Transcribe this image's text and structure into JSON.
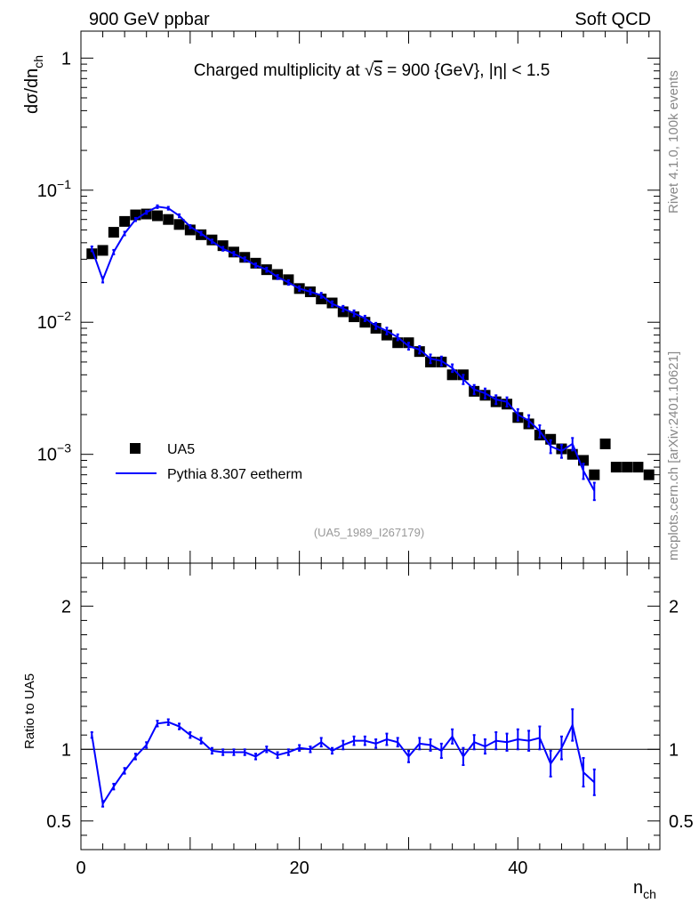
{
  "header": {
    "left": "900 GeV ppbar",
    "right": "Soft QCD"
  },
  "side_labels": {
    "top": "Rivet 4.1.0,  100k events",
    "bottom": "mcplots.cern.ch [arXiv:2401.10621]"
  },
  "chart_data": [
    {
      "type": "scatter",
      "title_prefix": "Charged multiplicity at ",
      "title_sqrt": "√",
      "title_s": "s",
      "title_suffix": " = 900 {GeV}, |η| < 1.5",
      "analysis_tag": "(UA5_1989_I267179)",
      "ylabel_main": "dσ/dn",
      "ylabel_sub": "ch",
      "yscale": "log",
      "ylim": [
        0.00015,
        1.6
      ],
      "xlim": [
        0,
        53
      ],
      "legend_position": "bottom-left",
      "y_ticks": [
        {
          "value": 1,
          "base": "1",
          "exp": ""
        },
        {
          "value": 0.1,
          "base": "10",
          "exp": "−1"
        },
        {
          "value": 0.01,
          "base": "10",
          "exp": "−2"
        },
        {
          "value": 0.001,
          "base": "10",
          "exp": "−3"
        }
      ],
      "series": [
        {
          "name": "UA5",
          "color": "#000000",
          "marker": "square",
          "x": [
            1,
            2,
            3,
            4,
            5,
            6,
            7,
            8,
            9,
            10,
            11,
            12,
            13,
            14,
            15,
            16,
            17,
            18,
            19,
            20,
            21,
            22,
            23,
            24,
            25,
            26,
            27,
            28,
            29,
            30,
            31,
            32,
            33,
            34,
            35,
            36,
            37,
            38,
            39,
            40,
            41,
            42,
            43,
            44,
            45,
            46,
            47,
            48,
            49,
            50,
            51,
            52
          ],
          "y": [
            0.033,
            0.035,
            0.048,
            0.058,
            0.065,
            0.066,
            0.064,
            0.06,
            0.055,
            0.05,
            0.046,
            0.042,
            0.038,
            0.034,
            0.031,
            0.028,
            0.025,
            0.023,
            0.021,
            0.018,
            0.017,
            0.015,
            0.014,
            0.012,
            0.011,
            0.01,
            0.009,
            0.008,
            0.007,
            0.007,
            0.006,
            0.005,
            0.005,
            0.004,
            0.004,
            0.003,
            0.0028,
            0.0025,
            0.0024,
            0.0019,
            0.0017,
            0.0014,
            0.0013,
            0.0011,
            0.001,
            0.0009,
            0.0007,
            0.0012,
            0.0008,
            0.0008,
            0.0008,
            0.0007
          ]
        },
        {
          "name": "Pythia 8.307 eetherm",
          "color": "#0000ff",
          "marker": "line",
          "x": [
            1,
            2,
            3,
            4,
            5,
            6,
            7,
            8,
            9,
            10,
            11,
            12,
            13,
            14,
            15,
            16,
            17,
            18,
            19,
            20,
            21,
            22,
            23,
            24,
            25,
            26,
            27,
            28,
            29,
            30,
            31,
            32,
            33,
            34,
            35,
            36,
            37,
            38,
            39,
            40,
            41,
            42,
            43,
            44,
            45,
            46,
            47
          ],
          "y": [
            0.036,
            0.021,
            0.034,
            0.047,
            0.06,
            0.068,
            0.075,
            0.073,
            0.064,
            0.053,
            0.047,
            0.041,
            0.036,
            0.033,
            0.03,
            0.027,
            0.025,
            0.022,
            0.02,
            0.018,
            0.017,
            0.016,
            0.0138,
            0.0127,
            0.0117,
            0.0107,
            0.0094,
            0.0086,
            0.0077,
            0.0066,
            0.0062,
            0.0053,
            0.0051,
            0.0045,
            0.0037,
            0.0031,
            0.0029,
            0.0026,
            0.0025,
            0.002,
            0.0018,
            0.0015,
            0.00115,
            0.00106,
            0.0012,
            0.00075,
            0.00053
          ],
          "err": [
            0.0015,
            0.001,
            0.0013,
            0.0015,
            0.0017,
            0.0018,
            0.0018,
            0.0018,
            0.0017,
            0.0015,
            0.0014,
            0.0013,
            0.0012,
            0.0011,
            0.001,
            0.0009,
            0.0009,
            0.0008,
            0.0008,
            0.0007,
            0.0007,
            0.0007,
            0.0006,
            0.0006,
            0.0006,
            0.0005,
            0.0005,
            0.0005,
            0.0004,
            0.0004,
            0.0004,
            0.0004,
            0.0004,
            0.0003,
            0.0003,
            0.00025,
            0.00025,
            0.0002,
            0.0002,
            0.0002,
            0.00018,
            0.00016,
            0.00013,
            0.00012,
            0.00013,
            0.0001,
            8e-05
          ]
        }
      ]
    },
    {
      "type": "line",
      "ylabel": "Ratio to UA5",
      "xlabel_main": "n",
      "xlabel_sub": "ch",
      "ylim": [
        0.3,
        2.3
      ],
      "xlim": [
        0,
        53
      ],
      "y_ticks": [
        0.5,
        1,
        2
      ],
      "y_tick_labels": [
        "0.5",
        "1",
        "2"
      ],
      "x_ticks": [
        0,
        20,
        40
      ],
      "x_tick_labels": [
        "0",
        "20",
        "40"
      ],
      "reference_line": 1,
      "series": [
        {
          "name": "Pythia 8.307 eetherm / UA5",
          "color": "#0000ff",
          "x": [
            1,
            2,
            3,
            4,
            5,
            6,
            7,
            8,
            9,
            10,
            11,
            12,
            13,
            14,
            15,
            16,
            17,
            18,
            19,
            20,
            21,
            22,
            23,
            24,
            25,
            26,
            27,
            28,
            29,
            30,
            31,
            32,
            33,
            34,
            35,
            36,
            37,
            38,
            39,
            40,
            41,
            42,
            43,
            44,
            45,
            46,
            47
          ],
          "y": [
            1.1,
            0.62,
            0.74,
            0.85,
            0.95,
            1.03,
            1.18,
            1.19,
            1.16,
            1.1,
            1.06,
            0.99,
            0.98,
            0.98,
            0.98,
            0.95,
            1.0,
            0.96,
            0.98,
            1.01,
            1.0,
            1.05,
            0.99,
            1.03,
            1.06,
            1.06,
            1.04,
            1.07,
            1.05,
            0.95,
            1.04,
            1.03,
            0.99,
            1.09,
            0.95,
            1.05,
            1.02,
            1.06,
            1.05,
            1.07,
            1.06,
            1.08,
            0.9,
            1.01,
            1.17,
            0.84,
            0.77
          ],
          "err": [
            0.02,
            0.02,
            0.02,
            0.02,
            0.02,
            0.02,
            0.02,
            0.02,
            0.02,
            0.02,
            0.02,
            0.02,
            0.02,
            0.02,
            0.02,
            0.02,
            0.02,
            0.02,
            0.02,
            0.02,
            0.02,
            0.03,
            0.02,
            0.03,
            0.03,
            0.03,
            0.03,
            0.04,
            0.03,
            0.04,
            0.04,
            0.04,
            0.05,
            0.05,
            0.06,
            0.05,
            0.05,
            0.06,
            0.06,
            0.07,
            0.07,
            0.08,
            0.09,
            0.08,
            0.11,
            0.1,
            0.09
          ]
        }
      ]
    }
  ]
}
